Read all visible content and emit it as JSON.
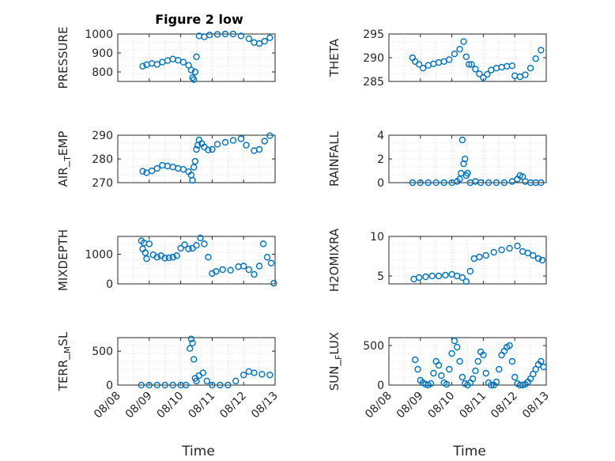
{
  "figure": {
    "title": "Figure 2 low",
    "xlabel": "Time",
    "marker_color": "#0072BD",
    "x_ticks": [
      "08/08",
      "08/09",
      "08/10",
      "08/11",
      "08/12",
      "08/13"
    ]
  },
  "chart_data": [
    {
      "type": "scatter",
      "marker": "circle",
      "ylabel": "PRESSURE",
      "ylim": [
        750,
        1000
      ],
      "yticks": [
        800,
        900,
        1000
      ],
      "grid": true,
      "x": [
        "08/08 19:00",
        "08/08 22:00",
        "08/09 02:00",
        "08/09 06:00",
        "08/09 10:00",
        "08/09 14:00",
        "08/09 18:00",
        "08/09 22:00",
        "08/10 02:00",
        "08/10 06:00",
        "08/10 08:00",
        "08/10 09:00",
        "08/10 10:00",
        "08/10 11:00",
        "08/10 12:00",
        "08/10 14:00",
        "08/10 18:00",
        "08/10 22:00",
        "08/11 04:00",
        "08/11 10:00",
        "08/11 16:00",
        "08/11 22:00",
        "08/12 04:00",
        "08/12 08:00",
        "08/12 12:00",
        "08/12 16:00",
        "08/12 20:00"
      ],
      "y": [
        830,
        838,
        845,
        840,
        852,
        860,
        868,
        862,
        852,
        835,
        810,
        770,
        760,
        800,
        880,
        990,
        985,
        995,
        998,
        1000,
        1000,
        990,
        975,
        955,
        950,
        962,
        980
      ]
    },
    {
      "type": "scatter",
      "marker": "circle",
      "ylabel": "THETA",
      "ylim": [
        285,
        295
      ],
      "yticks": [
        285,
        290,
        295
      ],
      "grid": true,
      "x": [
        "08/08 18:00",
        "08/08 20:00",
        "08/08 23:00",
        "08/09 02:00",
        "08/09 06:00",
        "08/09 10:00",
        "08/09 14:00",
        "08/09 18:00",
        "08/09 22:00",
        "08/10 02:00",
        "08/10 06:00",
        "08/10 09:00",
        "08/10 11:00",
        "08/10 13:00",
        "08/10 15:00",
        "08/10 18:00",
        "08/10 21:00",
        "08/11 00:00",
        "08/11 03:00",
        "08/11 06:00",
        "08/11 10:00",
        "08/11 14:00",
        "08/11 18:00",
        "08/11 22:00",
        "08/12 00:00",
        "08/12 04:00",
        "08/12 08:00",
        "08/12 12:00",
        "08/12 16:00",
        "08/12 20:00"
      ],
      "y": [
        290,
        289.2,
        288.6,
        287.8,
        288.4,
        288.7,
        289.0,
        289.2,
        289.6,
        290.8,
        291.8,
        293.4,
        290.2,
        288.6,
        288.6,
        287.6,
        286.6,
        285.8,
        286.5,
        287.4,
        287.8,
        288.0,
        288.2,
        288.3,
        286.2,
        286.0,
        286.4,
        287.8,
        289.8,
        291.6
      ]
    },
    {
      "type": "scatter",
      "marker": "circle",
      "ylabel": "AIR_TEMP",
      "ylim": [
        270,
        290
      ],
      "yticks": [
        270,
        280,
        290
      ],
      "grid": true,
      "x": [
        "08/08 19:00",
        "08/08 22:00",
        "08/09 02:00",
        "08/09 06:00",
        "08/09 10:00",
        "08/09 14:00",
        "08/09 18:00",
        "08/09 22:00",
        "08/10 02:00",
        "08/10 06:00",
        "08/10 08:00",
        "08/10 09:00",
        "08/10 10:00",
        "08/10 11:00",
        "08/10 12:00",
        "08/10 13:00",
        "08/10 14:00",
        "08/10 16:00",
        "08/10 18:00",
        "08/10 21:00",
        "08/11 00:00",
        "08/11 04:00",
        "08/11 10:00",
        "08/11 16:00",
        "08/11 22:00",
        "08/12 02:00",
        "08/12 08:00",
        "08/12 12:00",
        "08/12 16:00",
        "08/12 20:00"
      ],
      "y": [
        274.8,
        274.2,
        275.0,
        276.0,
        277.3,
        277.0,
        276.6,
        276.0,
        275.6,
        274.6,
        273.2,
        271.0,
        276.5,
        279.0,
        284.0,
        285.8,
        288.0,
        286.5,
        285.0,
        283.8,
        284.0,
        286.2,
        287.0,
        287.8,
        288.5,
        285.8,
        283.5,
        284.0,
        287.5,
        289.8
      ]
    },
    {
      "type": "scatter",
      "marker": "circle",
      "ylabel": "RAINFALL",
      "ylim": [
        0,
        4
      ],
      "yticks": [
        0,
        2,
        4
      ],
      "grid": true,
      "x": [
        "08/08 18:00",
        "08/09 00:00",
        "08/09 06:00",
        "08/09 12:00",
        "08/09 18:00",
        "08/10 00:00",
        "08/10 04:00",
        "08/10 06:00",
        "08/10 07:00",
        "08/10 08:00",
        "08/10 09:00",
        "08/10 10:00",
        "08/10 11:00",
        "08/10 12:00",
        "08/10 14:00",
        "08/10 18:00",
        "08/10 22:00",
        "08/11 04:00",
        "08/11 10:00",
        "08/11 16:00",
        "08/11 22:00",
        "08/12 02:00",
        "08/12 04:00",
        "08/12 06:00",
        "08/12 08:00",
        "08/12 12:00",
        "08/12 16:00",
        "08/12 20:00"
      ],
      "y": [
        0,
        0,
        0,
        0,
        0,
        0,
        0.1,
        0.3,
        0.8,
        3.6,
        1.6,
        2.0,
        0.6,
        0.8,
        0,
        0.1,
        0,
        0,
        0,
        0,
        0.1,
        0.3,
        0.6,
        0.5,
        0.1,
        0,
        0,
        0
      ]
    },
    {
      "type": "scatter",
      "marker": "circle",
      "ylabel": "MIXDEPTH",
      "ylim": [
        0,
        1600
      ],
      "yticks": [
        0,
        1000
      ],
      "grid": true,
      "x": [
        "08/08 18:00",
        "08/08 19:00",
        "08/08 20:00",
        "08/08 21:00",
        "08/08 22:00",
        "08/09 00:00",
        "08/09 03:00",
        "08/09 06:00",
        "08/09 09:00",
        "08/09 12:00",
        "08/09 15:00",
        "08/09 18:00",
        "08/09 21:00",
        "08/10 00:00",
        "08/10 03:00",
        "08/10 06:00",
        "08/10 09:00",
        "08/10 12:00",
        "08/10 15:00",
        "08/10 18:00",
        "08/10 21:00",
        "08/11 00:00",
        "08/11 03:00",
        "08/11 08:00",
        "08/11 14:00",
        "08/11 20:00",
        "08/12 00:00",
        "08/12 04:00",
        "08/12 08:00",
        "08/12 12:00",
        "08/12 15:00",
        "08/12 18:00",
        "08/12 21:00",
        "08/12 23:00"
      ],
      "y": [
        1450,
        1180,
        1380,
        1050,
        850,
        1350,
        980,
        900,
        950,
        870,
        880,
        900,
        950,
        1200,
        1320,
        1180,
        1200,
        1300,
        1550,
        1350,
        900,
        350,
        420,
        480,
        460,
        580,
        600,
        480,
        320,
        600,
        1350,
        900,
        700,
        20
      ]
    },
    {
      "type": "scatter",
      "marker": "circle",
      "ylabel": "H2OMIXRA",
      "ylim": [
        4,
        10
      ],
      "yticks": [
        5,
        10
      ],
      "grid": true,
      "x": [
        "08/08 19:00",
        "08/08 23:00",
        "08/09 04:00",
        "08/09 09:00",
        "08/09 14:00",
        "08/09 19:00",
        "08/10 00:00",
        "08/10 04:00",
        "08/10 08:00",
        "08/10 11:00",
        "08/10 14:00",
        "08/10 17:00",
        "08/10 21:00",
        "08/11 02:00",
        "08/11 08:00",
        "08/11 14:00",
        "08/11 20:00",
        "08/12 02:00",
        "08/12 06:00",
        "08/12 10:00",
        "08/12 14:00",
        "08/12 18:00",
        "08/12 21:00"
      ],
      "y": [
        4.6,
        4.8,
        4.9,
        5.0,
        5.0,
        5.1,
        5.2,
        5.0,
        4.8,
        4.3,
        5.6,
        7.2,
        7.4,
        7.6,
        8.0,
        8.3,
        8.5,
        8.8,
        8.1,
        7.9,
        7.6,
        7.2,
        7.0
      ]
    },
    {
      "type": "scatter",
      "marker": "circle",
      "ylabel": "TERR_MSL",
      "ylim": [
        0,
        700
      ],
      "yticks": [
        0,
        500
      ],
      "grid": true,
      "x": [
        "08/08 18:00",
        "08/09 00:00",
        "08/09 06:00",
        "08/09 12:00",
        "08/09 18:00",
        "08/10 00:00",
        "08/10 04:00",
        "08/10 07:00",
        "08/10 08:00",
        "08/10 09:00",
        "08/10 10:00",
        "08/10 11:00",
        "08/10 12:00",
        "08/10 14:00",
        "08/10 17:00",
        "08/10 20:00",
        "08/11 00:00",
        "08/11 06:00",
        "08/11 12:00",
        "08/11 18:00",
        "08/12 00:00",
        "08/12 04:00",
        "08/12 08:00",
        "08/12 14:00",
        "08/12 20:00"
      ],
      "y": [
        0,
        0,
        0,
        0,
        0,
        0,
        0,
        540,
        680,
        620,
        380,
        100,
        60,
        140,
        180,
        60,
        0,
        0,
        0,
        60,
        150,
        200,
        180,
        160,
        150
      ]
    },
    {
      "type": "scatter",
      "marker": "circle",
      "ylabel": "SUN_FLUX",
      "ylim": [
        0,
        600
      ],
      "yticks": [
        0,
        500
      ],
      "grid": true,
      "x": [
        "08/08 20:00",
        "08/08 22:00",
        "08/09 00:00",
        "08/09 02:00",
        "08/09 04:00",
        "08/09 06:00",
        "08/09 08:00",
        "08/09 10:00",
        "08/09 12:00",
        "08/09 14:00",
        "08/09 16:00",
        "08/09 18:00",
        "08/09 20:00",
        "08/09 22:00",
        "08/10 00:00",
        "08/10 02:00",
        "08/10 04:00",
        "08/10 06:00",
        "08/10 08:00",
        "08/10 10:00",
        "08/10 12:00",
        "08/10 14:00",
        "08/10 16:00",
        "08/10 18:00",
        "08/10 20:00",
        "08/10 22:00",
        "08/11 00:00",
        "08/11 02:00",
        "08/11 04:00",
        "08/11 06:00",
        "08/11 08:00",
        "08/11 10:00",
        "08/11 12:00",
        "08/11 14:00",
        "08/11 16:00",
        "08/11 18:00",
        "08/11 20:00",
        "08/11 22:00",
        "08/12 00:00",
        "08/12 02:00",
        "08/12 04:00",
        "08/12 06:00",
        "08/12 08:00",
        "08/12 10:00",
        "08/12 12:00",
        "08/12 14:00",
        "08/12 16:00",
        "08/12 18:00",
        "08/12 20:00",
        "08/12 22:00"
      ],
      "y": [
        320,
        200,
        60,
        30,
        10,
        0,
        20,
        150,
        300,
        250,
        120,
        30,
        10,
        200,
        400,
        560,
        480,
        300,
        100,
        20,
        0,
        30,
        80,
        180,
        300,
        420,
        380,
        150,
        30,
        0,
        0,
        40,
        200,
        380,
        430,
        480,
        500,
        300,
        100,
        20,
        0,
        0,
        10,
        40,
        80,
        140,
        200,
        260,
        300,
        230
      ]
    }
  ]
}
